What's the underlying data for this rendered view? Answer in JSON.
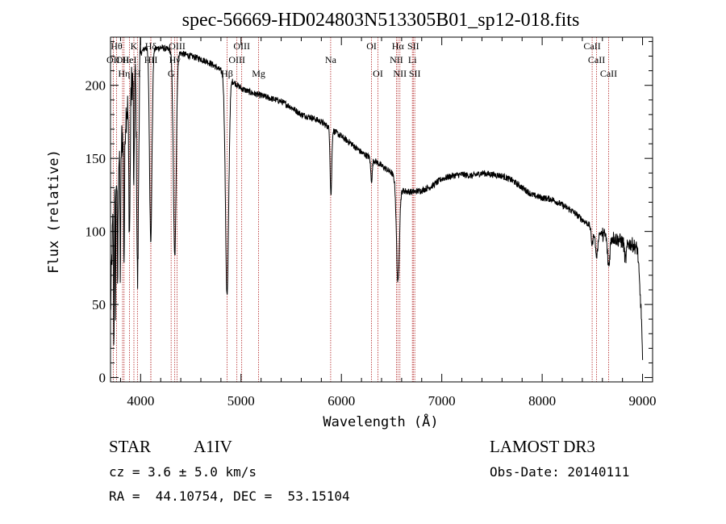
{
  "chart_data": {
    "type": "line",
    "title": "spec-56669-HD024803N513305B01_sp12-018.fits",
    "xlabel": "Wavelength (Å)",
    "ylabel": "Flux (relative)",
    "xlim": [
      3700,
      9100
    ],
    "ylim": [
      -3,
      233
    ],
    "x_ticks": [
      4000,
      5000,
      6000,
      7000,
      8000,
      9000
    ],
    "x_tick_labels": [
      "4000",
      "5000",
      "6000",
      "7000",
      "8000",
      "9000"
    ],
    "y_ticks": [
      0,
      50,
      100,
      150,
      200
    ],
    "y_tick_labels": [
      "0",
      "50",
      "100",
      "150",
      "200"
    ],
    "grid": false,
    "series": [
      {
        "name": "spectrum",
        "continuum": [
          [
            3700,
            45
          ],
          [
            3720,
            100
          ],
          [
            3750,
            135
          ],
          [
            3800,
            158
          ],
          [
            3850,
            178
          ],
          [
            3900,
            200
          ],
          [
            3950,
            212
          ],
          [
            4000,
            222
          ],
          [
            4050,
            226
          ],
          [
            4100,
            224
          ],
          [
            4150,
            225
          ],
          [
            4200,
            226
          ],
          [
            4300,
            224
          ],
          [
            4400,
            222
          ],
          [
            4500,
            220
          ],
          [
            4600,
            218
          ],
          [
            4700,
            215
          ],
          [
            4800,
            210
          ],
          [
            4900,
            204
          ],
          [
            5000,
            198
          ],
          [
            5100,
            195
          ],
          [
            5200,
            193
          ],
          [
            5300,
            191
          ],
          [
            5400,
            189
          ],
          [
            5500,
            185
          ],
          [
            5600,
            180
          ],
          [
            5700,
            178
          ],
          [
            5800,
            175
          ],
          [
            5900,
            170
          ],
          [
            6000,
            165
          ],
          [
            6100,
            160
          ],
          [
            6200,
            154
          ],
          [
            6300,
            150
          ],
          [
            6400,
            145
          ],
          [
            6500,
            140
          ],
          [
            6600,
            128
          ],
          [
            6700,
            127
          ],
          [
            6800,
            128
          ],
          [
            6900,
            131
          ],
          [
            7000,
            136
          ],
          [
            7100,
            138
          ],
          [
            7200,
            139
          ],
          [
            7300,
            138
          ],
          [
            7400,
            140
          ],
          [
            7500,
            139
          ],
          [
            7600,
            138
          ],
          [
            7700,
            135
          ],
          [
            7800,
            130
          ],
          [
            7900,
            125
          ],
          [
            8000,
            123
          ],
          [
            8100,
            122
          ],
          [
            8200,
            118
          ],
          [
            8300,
            114
          ],
          [
            8400,
            108
          ],
          [
            8500,
            103
          ],
          [
            8600,
            98
          ],
          [
            8700,
            96
          ],
          [
            8800,
            93
          ],
          [
            8900,
            91
          ],
          [
            8950,
            88
          ],
          [
            8990,
            40
          ],
          [
            9000,
            10
          ]
        ],
        "absorption_lines": [
          {
            "center": 3734,
            "depth": 95,
            "width": 3
          },
          {
            "center": 3750,
            "depth": 85,
            "width": 3
          },
          {
            "center": 3771,
            "depth": 80,
            "width": 4
          },
          {
            "center": 3798,
            "depth": 85,
            "width": 4
          },
          {
            "center": 3835,
            "depth": 90,
            "width": 5
          },
          {
            "center": 3889,
            "depth": 95,
            "width": 7
          },
          {
            "center": 3933,
            "depth": 85,
            "width": 4
          },
          {
            "center": 3970,
            "depth": 150,
            "width": 9
          },
          {
            "center": 4101,
            "depth": 130,
            "width": 12
          },
          {
            "center": 4340,
            "depth": 140,
            "width": 14
          },
          {
            "center": 4861,
            "depth": 150,
            "width": 16
          },
          {
            "center": 5896,
            "depth": 45,
            "width": 8
          },
          {
            "center": 6300,
            "depth": 15,
            "width": 8
          },
          {
            "center": 6563,
            "depth": 68,
            "width": 14
          },
          {
            "center": 8498,
            "depth": 12,
            "width": 10
          },
          {
            "center": 8542,
            "depth": 18,
            "width": 12
          },
          {
            "center": 8662,
            "depth": 20,
            "width": 12
          },
          {
            "center": 8830,
            "depth": 12,
            "width": 10
          }
        ]
      }
    ],
    "line_markers": [
      {
        "wavelength": 3727,
        "label": "OII",
        "row": 2
      },
      {
        "wavelength": 3760,
        "label": "Hθ",
        "row": 1
      },
      {
        "wavelength": 3820,
        "label": "OII",
        "row": 2
      },
      {
        "wavelength": 3835,
        "label": "Hη",
        "row": 3
      },
      {
        "wavelength": 3889,
        "label": "HeI",
        "row": 2
      },
      {
        "wavelength": 3933,
        "label": "K",
        "row": 1
      },
      {
        "wavelength": 3968,
        "label": "H",
        "row": 3
      },
      {
        "wavelength": 4101,
        "label": "Hδ",
        "row": 1
      },
      {
        "wavelength": 4102,
        "label": "HII",
        "row": 2
      },
      {
        "wavelength": 4304,
        "label": "G",
        "row": 3
      },
      {
        "wavelength": 4340,
        "label": "Hγ",
        "row": 2
      },
      {
        "wavelength": 4363,
        "label": "OIII",
        "row": 1
      },
      {
        "wavelength": 4861,
        "label": "Hβ",
        "row": 3
      },
      {
        "wavelength": 4959,
        "label": "OIII",
        "row": 2
      },
      {
        "wavelength": 5007,
        "label": "OIII",
        "row": 1
      },
      {
        "wavelength": 5175,
        "label": "Mg",
        "row": 3
      },
      {
        "wavelength": 5893,
        "label": "Na",
        "row": 2
      },
      {
        "wavelength": 6300,
        "label": "OI",
        "row": 1
      },
      {
        "wavelength": 6364,
        "label": "OI",
        "row": 3
      },
      {
        "wavelength": 6548,
        "label": "NII",
        "row": 2
      },
      {
        "wavelength": 6563,
        "label": "Hα",
        "row": 1
      },
      {
        "wavelength": 6583,
        "label": "NII",
        "row": 3
      },
      {
        "wavelength": 6707,
        "label": "Li",
        "row": 2
      },
      {
        "wavelength": 6716,
        "label": "SII",
        "row": 1
      },
      {
        "wavelength": 6731,
        "label": "SII",
        "row": 3
      },
      {
        "wavelength": 8498,
        "label": "CaII",
        "row": 1
      },
      {
        "wavelength": 8542,
        "label": "CaII",
        "row": 2
      },
      {
        "wavelength": 8662,
        "label": "CaII",
        "row": 3
      }
    ],
    "marker_color": "#b22222"
  },
  "info": {
    "class_label": "STAR",
    "subclass": "A1IV",
    "survey": "LAMOST DR3",
    "cz": "cz = 3.6 ± 5.0 km/s",
    "obs_date": "Obs-Date: 20140111",
    "radec": "RA =  44.10754, DEC =  53.15104"
  }
}
